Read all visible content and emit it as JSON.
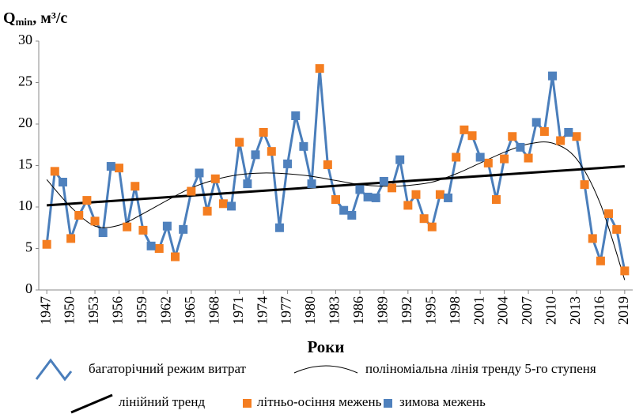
{
  "chart_data": {
    "type": "line",
    "ylabel": [
      "Q",
      "min",
      ", м³/с"
    ],
    "xlabel": "Роки",
    "x": [
      1947,
      1948,
      1949,
      1950,
      1951,
      1952,
      1953,
      1954,
      1955,
      1956,
      1957,
      1958,
      1959,
      1960,
      1961,
      1962,
      1963,
      1964,
      1965,
      1966,
      1967,
      1968,
      1969,
      1970,
      1971,
      1972,
      1973,
      1974,
      1975,
      1976,
      1977,
      1978,
      1979,
      1980,
      1981,
      1982,
      1983,
      1984,
      1985,
      1986,
      1987,
      1988,
      1989,
      1990,
      1991,
      1992,
      1993,
      1994,
      1995,
      1996,
      1997,
      1998,
      1999,
      2000,
      2001,
      2002,
      2003,
      2004,
      2005,
      2006,
      2007,
      2008,
      2009,
      2010,
      2011,
      2012,
      2013,
      2014,
      2015,
      2016,
      2017,
      2018,
      2019
    ],
    "xlim": [
      1946,
      2020
    ],
    "xticks": [
      1947,
      1950,
      1953,
      1956,
      1959,
      1962,
      1965,
      1968,
      1971,
      1974,
      1977,
      1980,
      1983,
      1986,
      1989,
      1992,
      1995,
      1998,
      2001,
      2004,
      2007,
      2010,
      2013,
      2016,
      2019
    ],
    "ylim": [
      0,
      30
    ],
    "yticks": [
      0,
      5,
      10,
      15,
      20,
      25,
      30
    ],
    "grid": false,
    "series": [
      {
        "name": "багаторічний режим витрат",
        "color": "#4a7ebb",
        "kind": "line"
      },
      {
        "name": "поліноміальна лінія тренду 5-го ступеня",
        "color": "#000000",
        "kind": "poly",
        "x": [
          1947,
          1950,
          1953,
          1956,
          1959,
          1962,
          1965,
          1968,
          1971,
          1974,
          1977,
          1980,
          1983,
          1986,
          1989,
          1992,
          1995,
          1998,
          2001,
          2004,
          2007,
          2010,
          2013,
          2016,
          2019
        ],
        "values": [
          13.3,
          10,
          7.7,
          7.8,
          9.2,
          10.8,
          12.3,
          13.3,
          13.9,
          14.1,
          14.0,
          13.7,
          13.2,
          12.7,
          12.5,
          12.6,
          13.0,
          14.0,
          15.3,
          16.6,
          17.6,
          17.7,
          15.8,
          10.3,
          1.2
        ]
      },
      {
        "name": "лінійний тренд",
        "color": "#000000",
        "kind": "linear",
        "x": [
          1947,
          2019
        ],
        "values": [
          10.2,
          14.9
        ]
      },
      {
        "name": "літньо-осіння межень",
        "color": "#f47d20",
        "kind": "marker",
        "values": [
          5.5,
          14.3,
          null,
          6.2,
          9.0,
          10.8,
          8.3,
          null,
          null,
          14.7,
          7.6,
          12.5,
          7.2,
          null,
          5.0,
          null,
          4.0,
          null,
          11.9,
          null,
          9.5,
          13.4,
          10.4,
          null,
          17.8,
          null,
          null,
          19.0,
          16.7,
          null,
          null,
          null,
          null,
          null,
          26.7,
          15.1,
          10.9,
          null,
          null,
          null,
          null,
          null,
          null,
          12.3,
          null,
          10.2,
          11.5,
          8.6,
          7.6,
          11.5,
          null,
          16.0,
          19.3,
          18.6,
          null,
          15.3,
          10.9,
          15.8,
          18.5,
          null,
          15.9,
          null,
          19.1,
          null,
          18.0,
          null,
          18.5,
          12.7,
          6.2,
          3.5,
          9.2,
          7.3,
          2.3
        ]
      },
      {
        "name": "зимова межень",
        "color": "#4f81bd",
        "kind": "marker",
        "values": [
          null,
          null,
          13.0,
          null,
          null,
          null,
          null,
          6.9,
          14.9,
          null,
          null,
          null,
          null,
          5.3,
          null,
          7.7,
          null,
          7.3,
          null,
          14.1,
          null,
          null,
          null,
          10.1,
          null,
          12.8,
          16.3,
          null,
          null,
          7.5,
          15.2,
          21.0,
          17.3,
          12.8,
          null,
          null,
          null,
          9.6,
          9.0,
          12.1,
          11.2,
          11.1,
          13.1,
          null,
          15.7,
          null,
          null,
          null,
          null,
          null,
          11.1,
          null,
          null,
          null,
          16.0,
          null,
          null,
          null,
          null,
          17.2,
          null,
          20.2,
          null,
          25.8,
          null,
          19.0,
          null,
          null,
          null,
          null,
          null,
          null,
          null
        ]
      }
    ]
  }
}
